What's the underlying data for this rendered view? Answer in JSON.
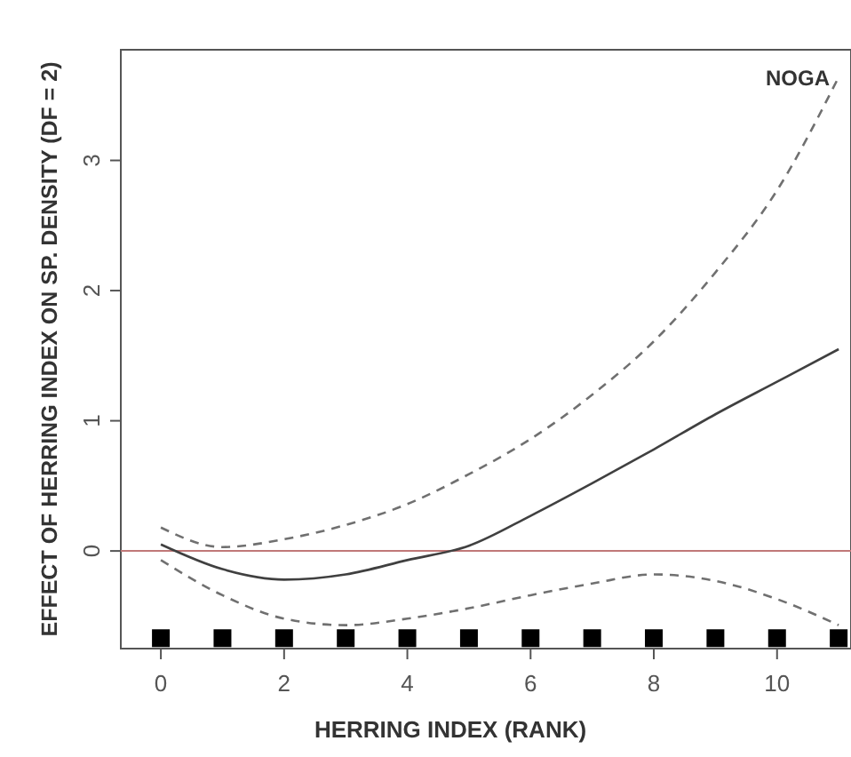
{
  "chart_data": {
    "type": "line",
    "annotations": [
      "NOGA"
    ],
    "xlabel": "HERRING INDEX (RANK)",
    "ylabel": "EFFECT OF HERRING INDEX ON SP. DENSITY (DF = 2)",
    "x": [
      0,
      1,
      2,
      3,
      4,
      5,
      6,
      7,
      8,
      9,
      10,
      11
    ],
    "series": [
      {
        "color": "#404040",
        "line_style": "solid",
        "values": [
          0.05,
          -0.14,
          -0.22,
          -0.18,
          -0.07,
          0.04,
          0.27,
          0.52,
          0.78,
          1.05,
          1.3,
          1.55
        ]
      },
      {
        "color": "#707070",
        "line_style": "dashed",
        "values": [
          0.18,
          0.03,
          0.09,
          0.2,
          0.36,
          0.59,
          0.86,
          1.2,
          1.61,
          2.14,
          2.77,
          3.64
        ]
      },
      {
        "color": "#707070",
        "line_style": "dashed",
        "values": [
          -0.07,
          -0.34,
          -0.52,
          -0.57,
          -0.52,
          -0.44,
          -0.34,
          -0.25,
          -0.18,
          -0.23,
          -0.37,
          -0.57
        ]
      },
      {
        "type": "scatter",
        "marker": "square",
        "color": "#000000",
        "x": [
          0,
          1,
          2,
          3,
          4,
          5,
          6,
          7,
          8,
          9,
          10,
          11
        ],
        "values": [
          -0.67,
          -0.67,
          -0.67,
          -0.67,
          -0.67,
          -0.67,
          -0.67,
          -0.67,
          -0.67,
          -0.67,
          -0.67,
          -0.67
        ]
      }
    ],
    "ref_lines": [
      {
        "axis": "y",
        "value": 0,
        "color": "#c07878"
      }
    ],
    "xlim": [
      -0.65,
      11.2
    ],
    "ylim": [
      -0.75,
      3.85
    ],
    "xticks": [
      0,
      2,
      4,
      6,
      8,
      10
    ],
    "yticks": [
      0,
      1,
      2,
      3
    ],
    "grid": false
  }
}
